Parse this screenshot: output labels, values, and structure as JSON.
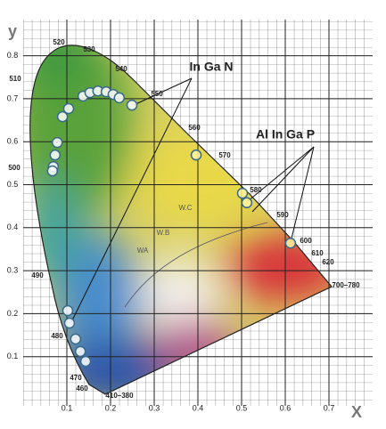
{
  "chart_data": {
    "type": "scatter",
    "x_label": "X",
    "y_label": "y",
    "xlim": [
      0,
      0.8
    ],
    "ylim": [
      0,
      0.88
    ],
    "xticks": [
      0.1,
      0.2,
      0.3,
      0.4,
      0.5,
      0.6,
      0.7
    ],
    "yticks": [
      0.1,
      0.2,
      0.3,
      0.4,
      0.5,
      0.6,
      0.7,
      0.8
    ],
    "grid": true,
    "series": [
      {
        "name": "In Ga N",
        "color": "#ffffff",
        "x": [
          0.137,
          0.153,
          0.171,
          0.19,
          0.206,
          0.22,
          0.249,
          0.104,
          0.09,
          0.078,
          0.073,
          0.069,
          0.067,
          0.102,
          0.106,
          0.12,
          0.131,
          0.143
        ],
        "y": [
          0.706,
          0.714,
          0.718,
          0.716,
          0.71,
          0.702,
          0.685,
          0.677,
          0.658,
          0.598,
          0.569,
          0.542,
          0.532,
          0.207,
          0.178,
          0.141,
          0.112,
          0.089
        ]
      },
      {
        "name": "Al In Ga P",
        "color": "#fff4a0",
        "x": [
          0.396,
          0.502,
          0.512,
          0.612
        ],
        "y": [
          0.569,
          0.48,
          0.458,
          0.364
        ]
      }
    ],
    "wavelength_labels": [
      "520",
      "530",
      "540",
      "550",
      "560",
      "570",
      "580",
      "590",
      "600",
      "610",
      "620",
      "700–780",
      "410–380",
      "460",
      "470",
      "480",
      "490",
      "500",
      "510"
    ],
    "region_labels": [
      "W.C",
      "W.B",
      "WA"
    ]
  }
}
